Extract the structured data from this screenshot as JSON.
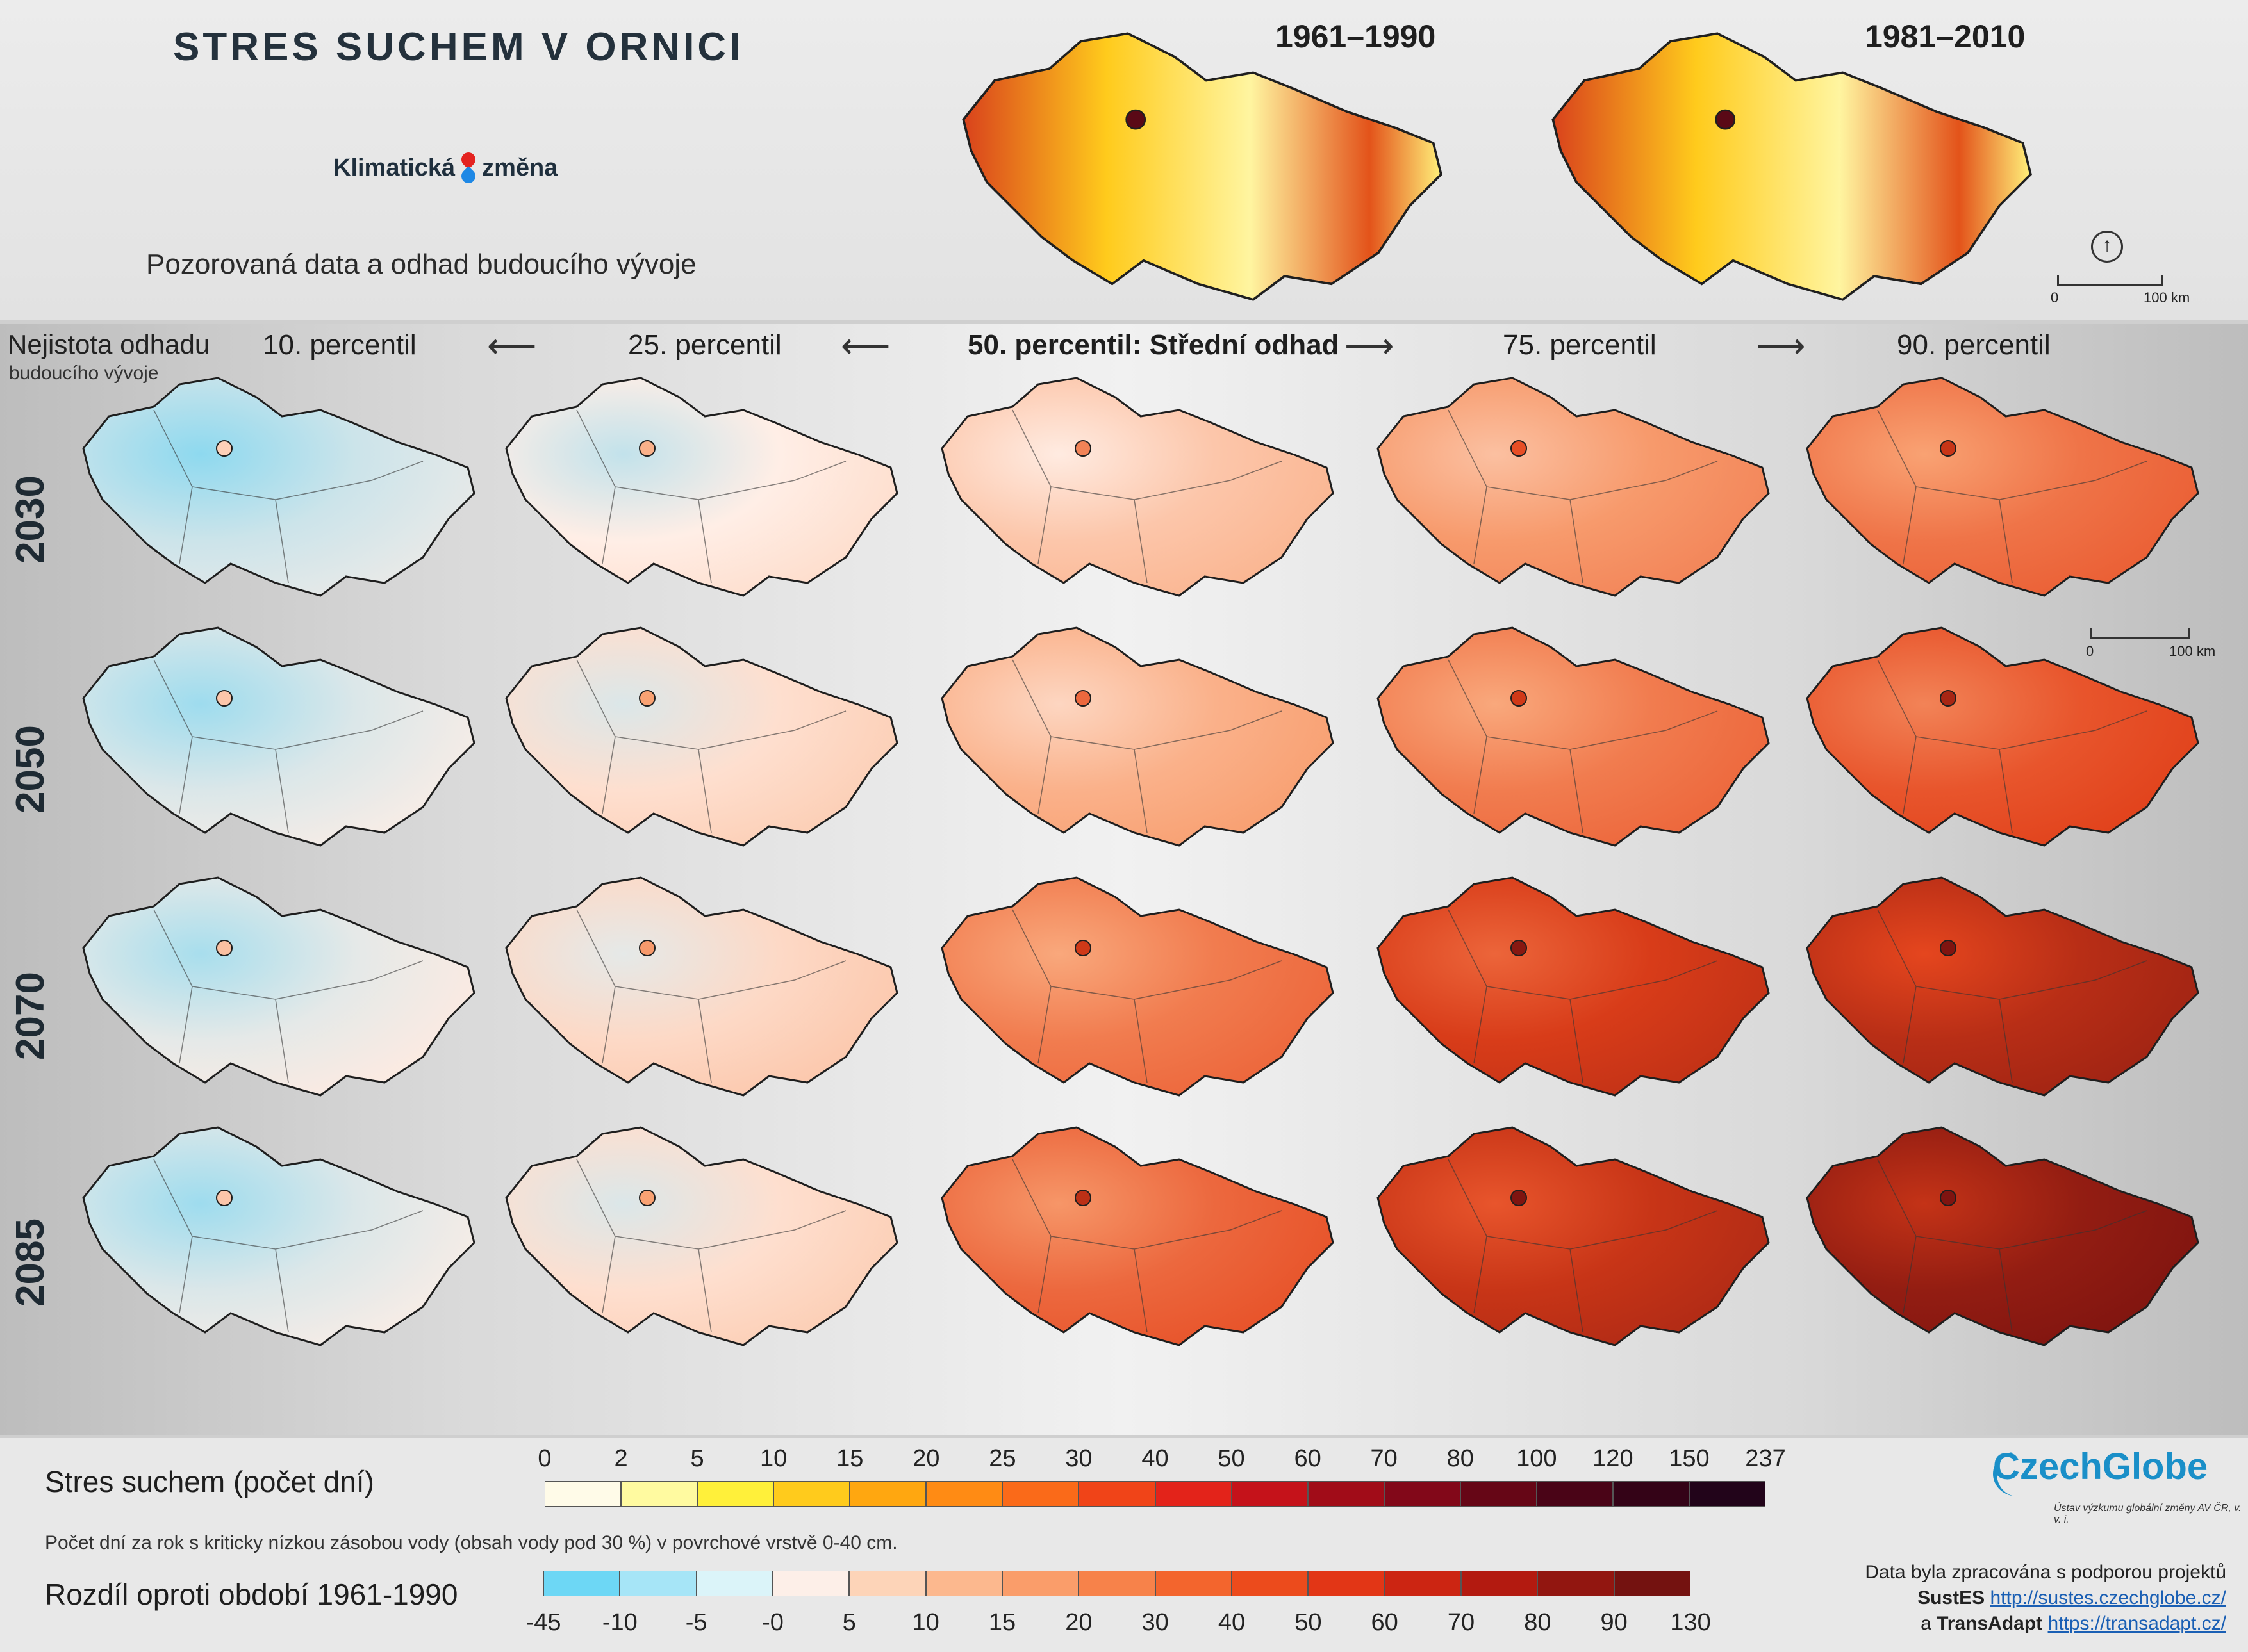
{
  "header": {
    "title": "STRES SUCHEM V ORNICI",
    "logo_text_1": "Klimatická",
    "logo_text_2": "změna",
    "subtitle": "Pozorovaná data a odhad budoucího vývoje",
    "historic_maps": [
      {
        "label": "1961–1990"
      },
      {
        "label": "1981–2010"
      }
    ],
    "scalebar": {
      "start": "0",
      "end": "100 km"
    }
  },
  "grid": {
    "uncertainty_label_1": "Nejistota odhadu",
    "uncertainty_label_2": "budoucího vývoje",
    "percentiles": [
      {
        "label": "10. percentil",
        "bold": false
      },
      {
        "label": "25. percentil",
        "bold": false
      },
      {
        "label": "50. percentil: Střední odhad",
        "bold": true
      },
      {
        "label": "75. percentil",
        "bold": false
      },
      {
        "label": "90. percentil",
        "bold": false
      }
    ],
    "years": [
      "2030",
      "2050",
      "2070",
      "2085"
    ],
    "scalebar": {
      "start": "0",
      "end": "100 km"
    },
    "map_levels": [
      [
        0.15,
        0.25,
        0.38,
        0.52,
        0.62
      ],
      [
        0.18,
        0.3,
        0.45,
        0.6,
        0.7
      ],
      [
        0.2,
        0.32,
        0.6,
        0.78,
        0.86
      ],
      [
        0.18,
        0.3,
        0.65,
        0.82,
        0.95
      ]
    ]
  },
  "legend": {
    "stress_title": "Stres suchem (počet dní)",
    "stress_ticks": [
      "0",
      "2",
      "5",
      "10",
      "15",
      "20",
      "25",
      "30",
      "40",
      "50",
      "60",
      "70",
      "80",
      "100",
      "120",
      "150",
      "237"
    ],
    "stress_colors": [
      "#fffbe8",
      "#fffaa0",
      "#fff03a",
      "#ffcb1c",
      "#ffa710",
      "#ff8b14",
      "#fa6a19",
      "#f04418",
      "#e3231a",
      "#c5121a",
      "#a10c18",
      "#820819",
      "#660616",
      "#4a0417",
      "#340317",
      "#22041a"
    ],
    "note": "Počet dní za rok s kriticky nízkou zásobou vody (obsah vody pod 30 %) v povrchové vrstvě 0-40 cm.",
    "diff_title": "Rozdíl oproti období 1961-1990",
    "diff_ticks": [
      "-45",
      "-10",
      "-5",
      "-0",
      "5",
      "10",
      "15",
      "20",
      "30",
      "40",
      "50",
      "60",
      "70",
      "80",
      "90",
      "130"
    ],
    "diff_colors": [
      "#6dd7f5",
      "#a6e5f7",
      "#dbf4f9",
      "#fdefe8",
      "#fdd4b8",
      "#fcb88e",
      "#fa9d6a",
      "#f7824a",
      "#f3652d",
      "#ec4b1c",
      "#e23616",
      "#cc2512",
      "#b31a10",
      "#921610",
      "#741210"
    ],
    "source": {
      "name": "CzechGlobe",
      "subtitle": "Ústav výzkumu globální změny AV ČR, v. v. i.",
      "line1": "Data byla zpracována s podporou projektů",
      "p1_name": "SustES",
      "p1_url": "http://sustes.czechglobe.cz/",
      "p2_prefix": "a",
      "p2_name": "TransAdapt",
      "p2_url": "https://transadapt.cz/"
    }
  }
}
